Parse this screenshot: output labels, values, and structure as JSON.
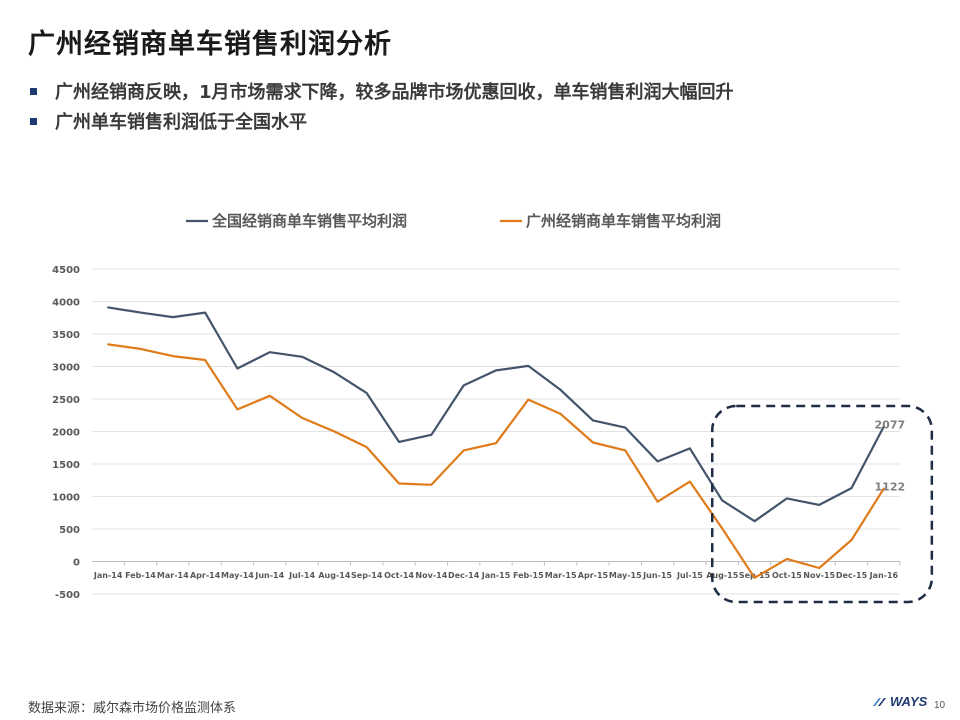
{
  "header": {
    "title": "广州经销商单车销售利润分析",
    "bullets": [
      "广州经销商反映，1月市场需求下降，较多品牌市场优惠回收，单车销售利润大幅回升",
      "广州单车销售利润低于全国水平"
    ]
  },
  "chart_data": {
    "type": "line",
    "x": [
      "Jan-14",
      "Feb-14",
      "Mar-14",
      "Apr-14",
      "May-14",
      "Jun-14",
      "Jul-14",
      "Aug-14",
      "Sep-14",
      "Oct-14",
      "Nov-14",
      "Dec-14",
      "Jan-15",
      "Feb-15",
      "Mar-15",
      "Apr-15",
      "May-15",
      "Jun-15",
      "Jul-15",
      "Aug-15",
      "Sep-15",
      "Oct-15",
      "Nov-15",
      "Dec-15",
      "Jan-16"
    ],
    "series": [
      {
        "name": "全国经销商单车销售平均利润",
        "color": "#44546a",
        "values": [
          3910,
          3830,
          3760,
          3830,
          2970,
          3220,
          3150,
          2910,
          2590,
          1840,
          1950,
          2710,
          2940,
          3010,
          2640,
          2170,
          2060,
          1540,
          1740,
          940,
          620,
          970,
          870,
          1130,
          2077
        ]
      },
      {
        "name": "广州经销商单车销售平均利润",
        "color": "#e07b1a",
        "values": [
          3340,
          3270,
          3160,
          3100,
          2340,
          2550,
          2210,
          2000,
          1760,
          1200,
          1180,
          1710,
          1820,
          2490,
          2270,
          1830,
          1710,
          920,
          1230,
          510,
          -250,
          40,
          -100,
          330,
          1122
        ]
      }
    ],
    "data_labels": [
      {
        "series": 0,
        "index": 24,
        "text": "2077"
      },
      {
        "series": 1,
        "index": 24,
        "text": "1122"
      }
    ],
    "ylim": [
      -500,
      4500
    ],
    "yticks": [
      -500,
      0,
      500,
      1000,
      1500,
      2000,
      2500,
      3000,
      3500,
      4000,
      4500
    ],
    "grid": true,
    "legend_position": "top",
    "highlight_range": [
      "Aug-15",
      "Jan-16"
    ]
  },
  "footer": {
    "source": "数据来源：威尔森市场价格监测体系",
    "logo_text": "WAYS",
    "page": "10"
  }
}
